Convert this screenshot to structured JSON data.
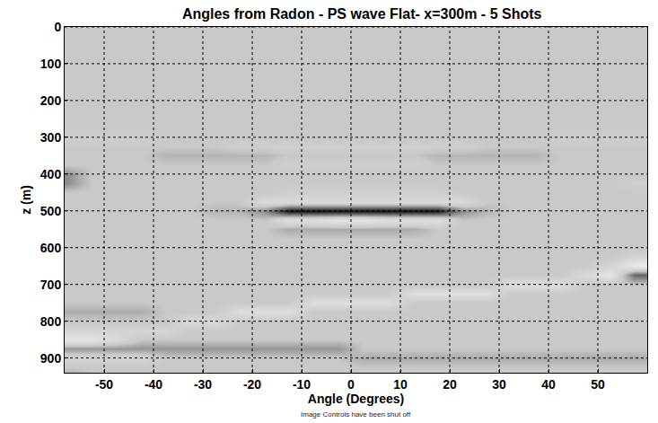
{
  "chart_data": {
    "type": "heatmap",
    "title": "Angles from Radon - PS wave Flat- x=300m - 5 Shots",
    "x_label": "Angle (Degrees)",
    "y_label": "z (m)",
    "annotations": [
      "Image Controls have been shut off"
    ],
    "xlim": [
      -58,
      60
    ],
    "ylim": [
      940,
      0
    ],
    "xticks": [
      -50,
      -40,
      -30,
      -20,
      -10,
      0,
      10,
      20,
      30,
      40,
      50
    ],
    "yticks": [
      0,
      100,
      200,
      300,
      400,
      500,
      600,
      700,
      800,
      900
    ],
    "grid": true,
    "cell_range": [
      -1,
      1
    ],
    "x": [
      -57.5,
      -52.5,
      -47.5,
      -42.5,
      -37.5,
      -32.5,
      -27.5,
      -22.5,
      -17.5,
      -12.5,
      -7.5,
      -2.5,
      2.5,
      7.5,
      12.5,
      17.5,
      22.5,
      27.5,
      32.5,
      37.5,
      42.5,
      47.5,
      52.5,
      57.5
    ],
    "y": [
      0,
      25,
      50,
      75,
      100,
      125,
      150,
      175,
      200,
      225,
      250,
      275,
      300,
      325,
      350,
      375,
      400,
      425,
      450,
      475,
      500,
      525,
      550,
      575,
      600,
      625,
      650,
      675,
      700,
      725,
      750,
      775,
      800,
      825,
      850,
      875,
      900,
      925,
      950,
      975,
      1000
    ],
    "cells": [
      [
        0,
        0,
        0,
        0,
        0,
        0,
        0,
        0,
        0,
        0,
        0,
        0,
        0,
        0,
        0,
        0,
        0,
        0,
        0,
        0,
        0,
        0,
        0,
        0
      ],
      [
        0,
        0,
        0,
        0,
        0,
        0,
        0,
        0,
        0,
        0,
        0,
        0,
        0,
        0,
        0,
        0,
        0,
        0,
        0,
        0,
        0,
        0,
        0,
        0
      ],
      [
        0,
        0,
        0,
        0,
        0,
        0,
        0,
        0,
        0,
        0,
        0,
        0,
        0,
        0,
        0,
        0,
        0,
        0,
        0,
        0,
        0,
        0,
        0,
        0
      ],
      [
        0,
        0,
        0,
        0,
        0,
        0,
        0,
        0,
        0,
        0,
        0,
        0,
        0,
        0,
        0,
        0,
        0,
        0,
        0,
        0,
        0,
        0,
        0,
        0
      ],
      [
        0,
        0,
        0,
        0,
        0,
        0,
        0,
        0,
        0,
        0,
        0,
        0,
        0,
        0,
        0,
        0,
        0,
        0,
        0,
        0,
        0,
        0,
        0,
        0
      ],
      [
        0,
        0,
        0,
        0,
        0,
        0,
        0,
        0,
        0,
        0,
        0,
        0,
        0,
        0,
        0,
        0,
        0,
        0,
        0,
        0,
        0,
        0,
        0,
        0
      ],
      [
        0,
        0,
        0,
        0,
        0,
        0,
        0,
        0,
        0,
        0,
        0,
        0,
        0,
        0,
        0,
        0,
        0,
        0,
        0,
        0,
        0,
        0,
        0,
        0
      ],
      [
        0,
        0,
        0,
        0,
        0,
        0,
        0,
        0,
        0,
        0,
        0,
        0,
        0,
        0,
        0,
        0,
        0,
        0,
        0,
        0,
        0,
        0,
        0,
        0
      ],
      [
        0,
        0,
        0,
        0,
        0,
        0,
        0,
        0,
        0,
        0,
        0,
        0,
        0,
        0,
        0,
        0,
        0,
        0,
        0,
        0,
        0,
        0,
        0,
        0
      ],
      [
        0,
        0,
        0,
        0,
        0,
        0,
        0,
        0,
        0,
        0,
        0,
        0,
        0,
        0,
        0,
        0,
        0,
        0,
        0,
        0,
        0,
        0,
        0,
        0
      ],
      [
        0,
        0,
        0,
        0,
        0,
        0,
        0,
        0,
        0,
        0,
        0,
        0,
        0,
        0,
        0,
        0,
        0,
        0,
        0,
        0,
        0,
        0,
        0,
        0
      ],
      [
        0,
        0,
        0,
        0,
        0,
        0,
        0,
        0,
        0,
        0,
        0,
        0,
        0,
        0,
        0,
        0,
        0,
        0,
        0,
        0,
        0,
        0,
        0,
        0
      ],
      [
        0.1,
        0.1,
        0.1,
        0.1,
        0,
        0,
        0,
        0,
        0,
        0,
        0,
        0,
        0,
        0,
        0,
        0,
        0,
        0,
        0,
        0,
        0.1,
        0.1,
        0.1,
        0.1
      ],
      [
        0,
        0,
        0,
        0,
        0,
        0,
        0,
        0.1,
        0.1,
        0.1,
        0.1,
        0.1,
        0.1,
        0.1,
        0.1,
        0.1,
        0.1,
        0,
        0,
        0,
        0,
        0,
        0,
        0
      ],
      [
        0,
        0,
        0,
        0,
        -0.1,
        -0.1,
        -0.1,
        -0.1,
        -0.1,
        0,
        0,
        0,
        0,
        0,
        0,
        -0.1,
        -0.1,
        -0.1,
        -0.1,
        -0.1,
        0,
        0,
        0,
        0
      ],
      [
        0,
        0,
        0,
        0,
        0,
        0,
        0,
        0,
        0,
        0.1,
        0.1,
        0.1,
        0.1,
        0.1,
        0.1,
        0,
        0,
        0,
        0,
        0,
        0,
        0,
        0,
        0
      ],
      [
        -0.3,
        0,
        0,
        0,
        0,
        0,
        0,
        0,
        0,
        0,
        0,
        0,
        0,
        0,
        0,
        0,
        0,
        0,
        0,
        0,
        0,
        0,
        0,
        0
      ],
      [
        -0.3,
        0,
        0,
        0,
        0,
        0,
        0,
        0,
        0,
        0,
        0,
        0,
        0,
        0,
        0,
        0,
        0,
        0,
        0,
        0,
        0,
        0,
        0,
        0.1
      ],
      [
        0,
        0,
        0,
        0,
        0,
        0,
        0,
        0,
        0,
        0.1,
        0.1,
        0.1,
        0.1,
        0.1,
        0.1,
        0.1,
        0,
        0,
        0,
        0,
        0,
        0,
        0,
        0
      ],
      [
        0,
        0,
        0,
        0,
        0,
        0,
        0,
        0,
        0.3,
        0.3,
        0.3,
        0.3,
        0.3,
        0.3,
        0.3,
        0.3,
        0.3,
        0,
        0,
        0,
        0,
        0,
        0,
        0
      ],
      [
        0,
        0,
        0,
        0,
        0,
        0,
        -0.1,
        -0.1,
        -0.3,
        -0.9,
        -0.9,
        -0.9,
        -0.9,
        -0.9,
        -0.9,
        -0.9,
        -0.3,
        -0.1,
        0,
        0,
        0,
        0,
        0,
        0
      ],
      [
        0,
        0,
        0,
        0,
        0,
        0,
        0,
        0,
        0,
        0.4,
        0.4,
        0.5,
        0.5,
        0.4,
        0.4,
        0.4,
        0,
        0,
        0,
        0,
        0,
        0,
        0,
        0
      ],
      [
        0,
        0,
        0,
        0,
        0,
        0,
        0,
        0,
        0,
        -0.15,
        -0.15,
        -0.15,
        -0.15,
        -0.15,
        -0.15,
        0,
        0,
        0,
        0,
        0,
        0,
        0,
        0,
        0
      ],
      [
        0,
        0,
        0,
        0,
        0,
        0,
        0,
        0,
        0,
        0,
        0,
        0,
        0,
        0,
        0,
        0,
        0,
        0,
        0,
        0,
        0,
        0,
        0,
        0
      ],
      [
        0,
        0,
        0,
        0,
        0,
        0,
        0,
        0,
        0,
        0,
        0,
        0,
        0,
        0,
        0,
        0,
        0,
        0,
        0,
        0,
        0,
        0,
        0,
        0
      ],
      [
        0,
        0,
        0,
        0,
        0,
        0,
        0,
        0,
        0,
        0,
        0,
        0,
        0,
        0,
        0,
        0,
        0,
        0,
        0,
        0,
        0,
        0,
        0,
        0.2
      ],
      [
        0,
        0,
        0,
        0,
        0,
        0,
        0,
        0,
        0,
        0,
        0,
        0,
        0,
        0,
        0,
        0,
        0,
        0,
        0,
        0,
        0,
        0,
        0.2,
        0.6
      ],
      [
        0,
        0,
        0,
        0,
        0,
        0,
        0,
        0,
        0,
        0,
        0,
        0,
        0,
        0,
        0,
        0,
        0,
        0,
        0,
        0,
        0,
        0.3,
        0.5,
        -0.5
      ],
      [
        0,
        0,
        0,
        0,
        0,
        0,
        0,
        0,
        0,
        0,
        0,
        0,
        0,
        0,
        0,
        0,
        0,
        0,
        0.4,
        0.4,
        0.4,
        0,
        0,
        0
      ],
      [
        0,
        0,
        0,
        0,
        0,
        0,
        0,
        0,
        0,
        0,
        0,
        0,
        0,
        0,
        0.4,
        0.4,
        0.4,
        0.4,
        0,
        0,
        0,
        0,
        0,
        0
      ],
      [
        0,
        0,
        0,
        0,
        0,
        0,
        0,
        0,
        0,
        0,
        0.4,
        0.4,
        0.4,
        0.4,
        0,
        0,
        0,
        0,
        0,
        0,
        0,
        0,
        0,
        0
      ],
      [
        -0.15,
        -0.15,
        -0.15,
        -0.15,
        0,
        0,
        0,
        0.4,
        0.4,
        0.4,
        0,
        0,
        0,
        0,
        0,
        0,
        0,
        0,
        0,
        0,
        0,
        0,
        0,
        0
      ],
      [
        0,
        0,
        0,
        0,
        0,
        0.3,
        0.3,
        0,
        0,
        0,
        0,
        0,
        0,
        0,
        0,
        0,
        0,
        0,
        0,
        0,
        0,
        0,
        0,
        0
      ],
      [
        0.2,
        0.2,
        0.2,
        0.2,
        0.2,
        0,
        0,
        0,
        0,
        0,
        0,
        0,
        0,
        0,
        0,
        0,
        0,
        0,
        0,
        0,
        0,
        0,
        0,
        0
      ],
      [
        0.5,
        0.5,
        0.3,
        0,
        0,
        0,
        0,
        0,
        0,
        0,
        0,
        0,
        0,
        0,
        0,
        0,
        0,
        0,
        0,
        0,
        0,
        0,
        0,
        0
      ],
      [
        -0.25,
        -0.25,
        -0.25,
        -0.25,
        -0.25,
        -0.25,
        -0.25,
        -0.25,
        -0.25,
        -0.25,
        -0.25,
        -0.25,
        0,
        0,
        0,
        0,
        0,
        0,
        0,
        0,
        0,
        0,
        0,
        0
      ],
      [
        0.2,
        0.2,
        0.2,
        0.2,
        0,
        0,
        0,
        0,
        0,
        0,
        0,
        0,
        -0.15,
        -0.15,
        -0.15,
        -0.15,
        -0.15,
        -0.15,
        -0.15,
        -0.15,
        -0.15,
        -0.15,
        -0.15,
        -0.15
      ],
      [
        0,
        0,
        0,
        0,
        0,
        0,
        0,
        0,
        0,
        0,
        0,
        0,
        0,
        0,
        0,
        0,
        0,
        0,
        0,
        0,
        0,
        0,
        0,
        0
      ],
      [
        -0.2,
        0,
        0,
        0,
        0,
        0,
        0,
        0,
        0,
        0,
        0,
        0,
        0,
        0,
        0,
        0,
        0,
        0,
        0,
        0,
        0,
        0,
        0,
        0
      ],
      [
        0,
        0,
        0,
        0,
        0,
        0,
        0,
        0,
        0,
        0,
        0,
        0,
        0,
        0,
        0,
        0,
        0,
        0,
        0,
        0,
        0,
        0,
        0,
        0
      ],
      [
        0,
        0,
        0,
        0,
        0,
        0,
        0,
        0,
        0,
        0,
        0,
        0,
        0,
        0,
        0,
        0,
        0,
        0,
        0,
        0,
        0,
        0,
        0,
        0
      ]
    ]
  }
}
